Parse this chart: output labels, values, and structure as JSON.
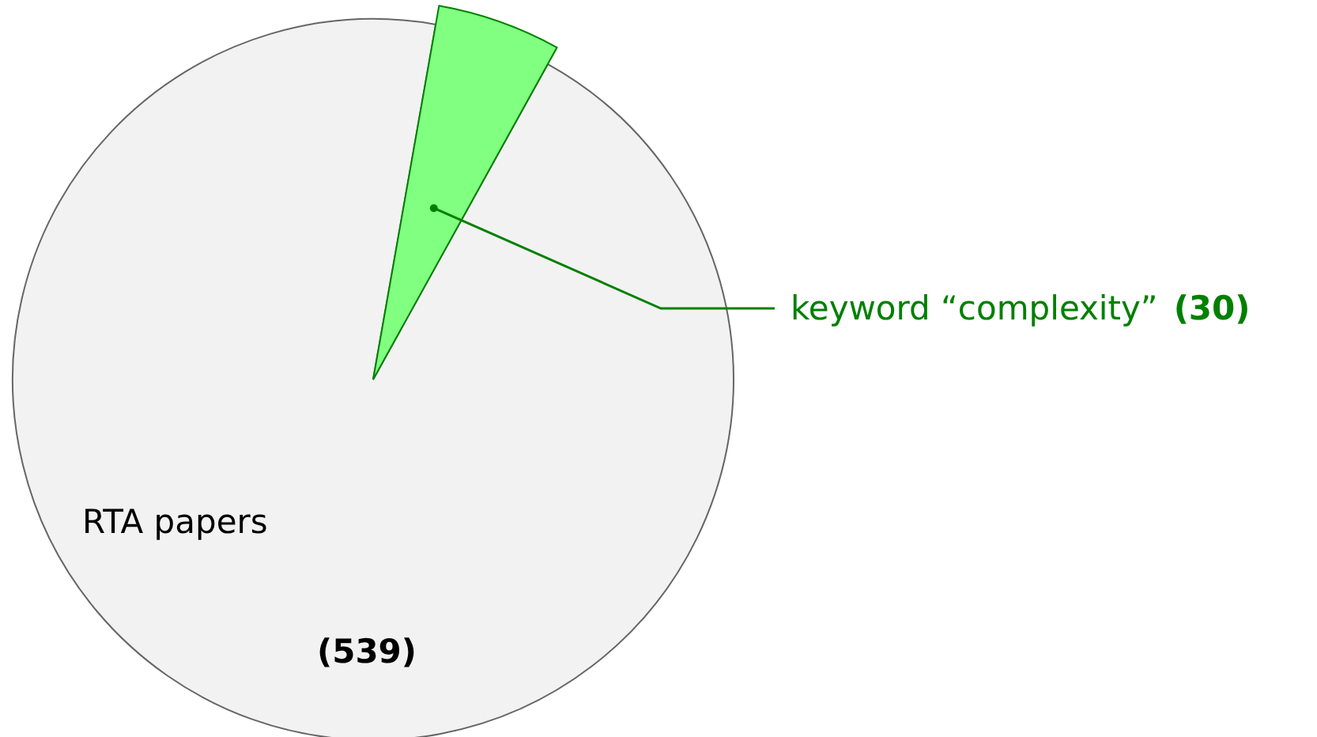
{
  "chart_data": {
    "type": "pie",
    "categories": [
      "RTA papers",
      "keyword “complexity”"
    ],
    "values": [
      539,
      30
    ],
    "colors": [
      "#f2f2f2",
      "#80ff80"
    ],
    "value_labels": [
      "(539)",
      "(30)"
    ]
  }
}
